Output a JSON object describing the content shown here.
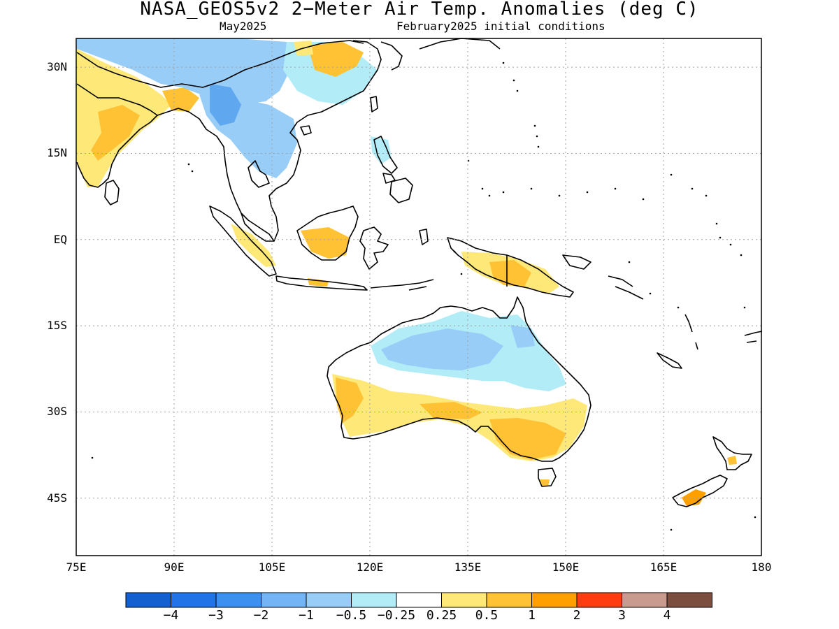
{
  "header": {
    "title": "NASA_GEOS5v2 2−Meter Air Temp. Anomalies (deg C)",
    "subtitle_left": "May2025",
    "subtitle_right": "February2025 initial conditions"
  },
  "axes": {
    "lat_labels": [
      "30N",
      "15N",
      "EQ",
      "15S",
      "30S",
      "45S"
    ],
    "lat_values": [
      30,
      15,
      0,
      -15,
      -30,
      -45
    ],
    "lon_labels": [
      "75E",
      "90E",
      "105E",
      "120E",
      "135E",
      "150E",
      "165E",
      "180"
    ],
    "lon_values": [
      75,
      90,
      105,
      120,
      135,
      150,
      165,
      180
    ],
    "lon_range": [
      75,
      180
    ],
    "lat_range": [
      -55,
      35
    ],
    "grid": "dotted"
  },
  "colorbar": {
    "colors": [
      "#1560d0",
      "#2272e8",
      "#3b90f0",
      "#72b4f5",
      "#98cdf8",
      "#b2ecf7",
      "#ffffff",
      "#fde878",
      "#ffc235",
      "#ffa000",
      "#ff3b12",
      "#c89b8e",
      "#7b4e3f"
    ],
    "labels": [
      "−4",
      "−3",
      "−2",
      "−1",
      "−0.5",
      "−0.25",
      "0.25",
      "0.5",
      "1",
      "2",
      "3",
      "4"
    ]
  },
  "palette": {
    "cold_strong": "#5fa8ef",
    "cold_mid": "#98cdf8",
    "cold_light": "#b2ecf7",
    "warm_light": "#fde878",
    "warm_mid": "#ffc235",
    "warm_strong": "#ffa000",
    "coast": "#000000",
    "grid": "#a0a0a0"
  }
}
